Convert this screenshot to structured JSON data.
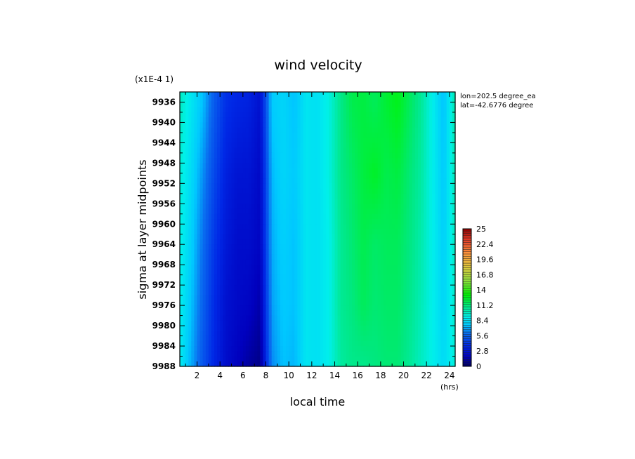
{
  "chart_data": {
    "type": "heatmap",
    "title": "wind velocity",
    "xlabel": "local time",
    "ylabel": "sigma at layer midpoints",
    "x_unit": "(hrs)",
    "y_scale_note": "(x1E-4 1)",
    "annotations": [
      "lon=202.5 degree_ea",
      "lat=-42.6776 degree"
    ],
    "xlim": [
      0.5,
      24.5
    ],
    "ylim": [
      9934,
      9988
    ],
    "x_ticks": [
      2,
      4,
      6,
      8,
      10,
      12,
      14,
      16,
      18,
      20,
      22,
      24
    ],
    "y_ticks": [
      9936,
      9940,
      9944,
      9948,
      9952,
      9956,
      9960,
      9964,
      9968,
      9972,
      9976,
      9980,
      9984,
      9988
    ],
    "y_inverted": true,
    "colorbar": {
      "min": 0,
      "max": 25,
      "tick_labels": [
        "0",
        "2.8",
        "5.6",
        "8.4",
        "11.2",
        "14",
        "16.8",
        "19.6",
        "22.4",
        "25"
      ]
    },
    "x": [
      0.5,
      1.5,
      2.5,
      3.5,
      4.5,
      5.5,
      6.5,
      7.5,
      8.5,
      9.5,
      10.5,
      11.5,
      12.5,
      13.5,
      14.5,
      15.5,
      16.5,
      17.5,
      18.5,
      19.5,
      20.5,
      21.5,
      22.5,
      23.5,
      24.5
    ],
    "y": [
      9936,
      9950,
      9964,
      9976,
      9988
    ],
    "z": [
      [
        9.8,
        8.6,
        7.4,
        5.4,
        4.0,
        3.6,
        3.4,
        2.6,
        7.6,
        8.0,
        7.4,
        8.6,
        8.4,
        9.2,
        10.8,
        11.8,
        12.0,
        11.6,
        12.2,
        12.6,
        11.6,
        10.6,
        9.0,
        7.4,
        10.2
      ],
      [
        9.4,
        8.2,
        6.6,
        4.8,
        3.4,
        2.8,
        2.8,
        2.2,
        7.2,
        8.0,
        7.6,
        8.6,
        8.4,
        9.2,
        10.8,
        11.4,
        12.0,
        12.4,
        11.8,
        12.0,
        11.2,
        10.4,
        9.0,
        7.6,
        10.0
      ],
      [
        9.2,
        7.8,
        6.0,
        4.2,
        3.0,
        2.4,
        2.4,
        2.0,
        7.0,
        7.8,
        7.4,
        8.6,
        8.4,
        9.0,
        10.6,
        11.2,
        11.8,
        11.4,
        11.6,
        11.6,
        11.0,
        10.2,
        9.0,
        7.8,
        9.8
      ],
      [
        9.0,
        7.4,
        5.6,
        3.8,
        2.6,
        2.2,
        2.0,
        1.4,
        6.8,
        7.6,
        7.4,
        8.6,
        8.4,
        9.0,
        10.6,
        11.0,
        11.6,
        11.2,
        11.4,
        11.4,
        10.8,
        10.0,
        9.0,
        8.0,
        9.6
      ],
      [
        8.8,
        7.0,
        5.2,
        3.6,
        2.4,
        1.8,
        1.2,
        0.8,
        6.4,
        7.4,
        7.2,
        8.6,
        8.4,
        9.0,
        10.4,
        10.8,
        10.8,
        11.0,
        11.2,
        11.2,
        10.6,
        9.8,
        9.0,
        8.2,
        9.4
      ]
    ]
  }
}
